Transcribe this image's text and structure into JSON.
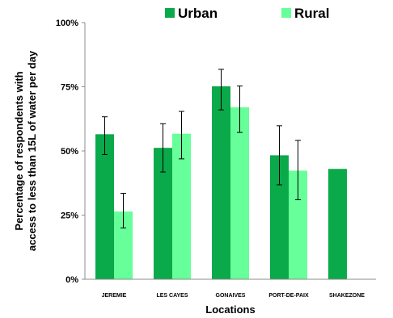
{
  "chart_data": {
    "type": "bar",
    "title": "",
    "xlabel": "Locations",
    "ylabel": "Percentage of respondents with access to less than 15L of water per day",
    "ylim": [
      0,
      100
    ],
    "yticks": [
      "0%",
      "25%",
      "50%",
      "75%",
      "100%"
    ],
    "ytick_values": [
      0,
      25,
      50,
      75,
      100
    ],
    "grid": false,
    "legend_position": "top",
    "categories": [
      "JEREMIE",
      "LES CAYES",
      "GONAIVES",
      "PORT-DE-PAIX",
      "SHAKEZONE"
    ],
    "series": [
      {
        "name": "Urban",
        "color": "#0aa94a",
        "values": [
          56.5,
          51.2,
          75.2,
          48.3,
          43.0
        ],
        "error_low": [
          48.6,
          41.8,
          66.0,
          36.8,
          null
        ],
        "error_high": [
          63.3,
          60.6,
          81.8,
          59.8,
          null
        ]
      },
      {
        "name": "Rural",
        "color": "#66ff99",
        "values": [
          26.4,
          56.7,
          67.0,
          42.3,
          null
        ],
        "error_low": [
          20.0,
          46.9,
          57.2,
          31.0,
          null
        ],
        "error_high": [
          33.5,
          65.4,
          75.3,
          54.1,
          null
        ]
      }
    ]
  }
}
